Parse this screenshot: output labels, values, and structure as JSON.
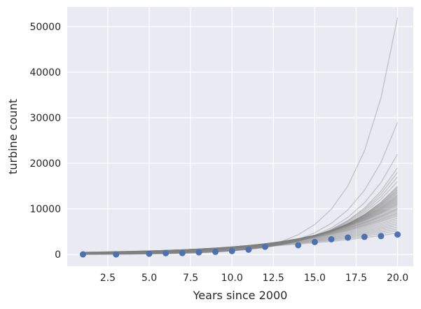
{
  "chart_data": {
    "type": "scatter",
    "title": "",
    "xlabel": "Years since 2000",
    "ylabel": "turbine count",
    "xlim": [
      0.05,
      20.95
    ],
    "ylim": [
      -2600,
      54300
    ],
    "grid": true,
    "background": "#eaeaf2",
    "grid_color": "#ffffff",
    "marker_color": "#4c72b0",
    "line_color": "#808080",
    "x_ticks": [
      2.5,
      5.0,
      7.5,
      10.0,
      12.5,
      15.0,
      17.5,
      20.0
    ],
    "x_tick_labels": [
      "2.5",
      "5.0",
      "7.5",
      "10.0",
      "12.5",
      "15.0",
      "17.5",
      "20.0"
    ],
    "y_ticks": [
      0,
      10000,
      20000,
      30000,
      40000,
      50000
    ],
    "y_tick_labels": [
      "0",
      "10000",
      "20000",
      "30000",
      "40000",
      "50000"
    ],
    "observed": {
      "x": [
        1,
        3,
        5,
        6,
        7,
        8,
        9,
        10,
        11,
        12,
        14,
        15,
        16,
        17,
        18,
        19,
        20
      ],
      "y": [
        10,
        0,
        150,
        270,
        300,
        460,
        570,
        740,
        1040,
        1680,
        2020,
        2720,
        3320,
        3690,
        3850,
        4030,
        4360
      ]
    },
    "fits": {
      "x_start": 1,
      "x_end": 20,
      "final_values": [
        52000,
        29000,
        22000,
        19000,
        18000,
        17000,
        16000,
        15000,
        14800,
        14500,
        14200,
        14000,
        13700,
        13500,
        13200,
        13000,
        12800,
        12600,
        12400,
        12200,
        12000,
        11800,
        11600,
        11400,
        11200,
        11000,
        10800,
        10500,
        10200,
        10000,
        9800,
        9500,
        9200,
        9000,
        8700,
        8400,
        8000,
        7600,
        7200,
        6800,
        6400,
        6000,
        5600,
        5200,
        4700
      ],
      "start_values": [
        20,
        30,
        40,
        50,
        60,
        70,
        80,
        90,
        100,
        110,
        120,
        130,
        140,
        150,
        160,
        170,
        180,
        190,
        200,
        210,
        220,
        230,
        240,
        250,
        260,
        270,
        280,
        290,
        300,
        310,
        320,
        330,
        340,
        350,
        360,
        370,
        380,
        390,
        400,
        410,
        420,
        430,
        440,
        450,
        460
      ]
    }
  }
}
